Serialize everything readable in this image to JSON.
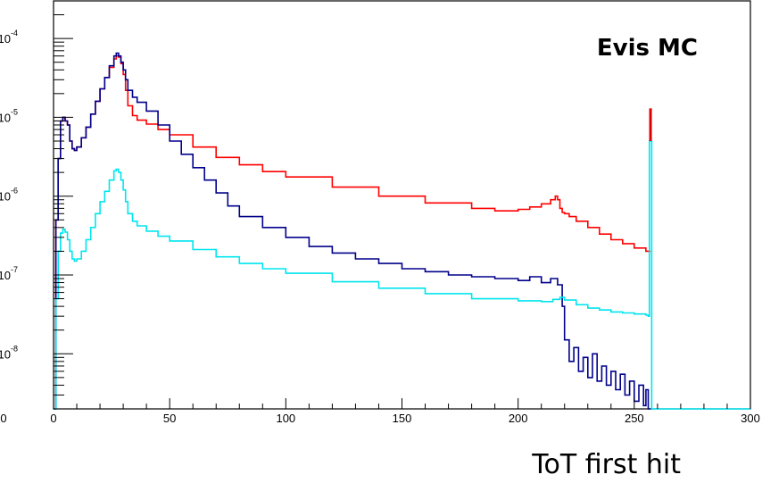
{
  "chart_data": {
    "type": "line",
    "title": "",
    "annotation": "Evis MC",
    "xlabel": "ToT first hit",
    "ylabel": "",
    "xlim": [
      0,
      300
    ],
    "ylog": true,
    "ylim": [
      2e-09,
      0.0003
    ],
    "x_ticks": [
      "0",
      "50",
      "100",
      "150",
      "200",
      "250",
      "300"
    ],
    "y_ticks": [
      {
        "value": 0.0001,
        "label": "10-4"
      },
      {
        "value": 1e-05,
        "label": "10-5"
      },
      {
        "value": 1e-06,
        "label": "10-6"
      },
      {
        "value": 1e-07,
        "label": "10-7"
      },
      {
        "value": 1e-08,
        "label": "10-8"
      }
    ],
    "grid": false,
    "legend": "none",
    "series": [
      {
        "color": "#ff0000",
        "x": [
          0,
          1,
          2,
          3,
          4,
          5,
          6,
          7,
          8,
          9,
          10,
          12,
          14,
          16,
          18,
          20,
          22,
          24,
          26,
          27,
          28,
          29,
          30,
          31,
          32,
          34,
          36,
          40,
          45,
          50,
          60,
          70,
          80,
          90,
          100,
          120,
          140,
          160,
          180,
          190,
          200,
          205,
          210,
          214,
          216,
          217,
          218,
          219,
          220,
          222,
          225,
          230,
          235,
          240,
          245,
          250,
          255,
          257
        ],
        "y": [
          2e-09,
          5e-07,
          3e-06,
          9e-06,
          1e-05,
          9e-06,
          8e-06,
          5e-06,
          4e-06,
          3.8e-06,
          4.2e-06,
          5.5e-06,
          7.5e-06,
          1.1e-05,
          1.6e-05,
          2.3e-05,
          3.2e-05,
          4.3e-05,
          5.5e-05,
          6e-05,
          5.8e-05,
          4.8e-05,
          3.5e-05,
          2.2e-05,
          1.4e-05,
          1.05e-05,
          9.2e-06,
          8.2e-06,
          7e-06,
          6e-06,
          4.2e-06,
          3.1e-06,
          2.5e-06,
          2.05e-06,
          1.75e-06,
          1.3e-06,
          1e-06,
          8.2e-07,
          7e-07,
          6.5e-07,
          6.8e-07,
          7.3e-07,
          8e-07,
          9e-07,
          1e-06,
          9e-07,
          7e-07,
          6.2e-07,
          6e-07,
          5.5e-07,
          4.8e-07,
          4e-07,
          3.3e-07,
          2.8e-07,
          2.5e-07,
          2.2e-07,
          2e-07,
          2e-07
        ]
      },
      {
        "color": "#00008b",
        "x": [
          0,
          1,
          2,
          3,
          4,
          5,
          6,
          7,
          8,
          9,
          10,
          12,
          14,
          16,
          18,
          20,
          22,
          24,
          26,
          27,
          28,
          29,
          30,
          31,
          32,
          34,
          36,
          40,
          45,
          50,
          55,
          60,
          65,
          70,
          75,
          80,
          90,
          100,
          110,
          120,
          130,
          140,
          150,
          160,
          170,
          180,
          190,
          200,
          205,
          210,
          214,
          217,
          219,
          220,
          222,
          224,
          226,
          228,
          230,
          232,
          234,
          236,
          238,
          240,
          242,
          244,
          246,
          248,
          250,
          252,
          254,
          255,
          256,
          257
        ],
        "y": [
          2e-09,
          5e-07,
          3e-06,
          9e-06,
          1e-05,
          9e-06,
          8e-06,
          5e-06,
          4e-06,
          3.8e-06,
          4.2e-06,
          5.5e-06,
          7.5e-06,
          1.1e-05,
          1.6e-05,
          2.3e-05,
          3.2e-05,
          4.5e-05,
          6e-05,
          6.5e-05,
          6e-05,
          5e-05,
          4e-05,
          3e-05,
          2.2e-05,
          1.8e-05,
          1.55e-05,
          1.2e-05,
          8e-06,
          5e-06,
          3.4e-06,
          2.3e-06,
          1.6e-06,
          1.1e-06,
          7.5e-07,
          5.5e-07,
          4e-07,
          3e-07,
          2.3e-07,
          1.9e-07,
          1.6e-07,
          1.4e-07,
          1.2e-07,
          1.1e-07,
          1e-07,
          9.5e-08,
          9e-08,
          8.5e-08,
          9.5e-08,
          8e-08,
          9e-08,
          7.5e-08,
          4e-08,
          1.5e-08,
          8e-09,
          1.2e-08,
          6e-09,
          9e-09,
          5e-09,
          1e-08,
          4.5e-09,
          7e-09,
          4e-09,
          6e-09,
          3.5e-09,
          5.5e-09,
          3e-09,
          4.5e-09,
          2.5e-09,
          4e-09,
          2.2e-09,
          3.5e-09,
          2e-09,
          2e-09
        ]
      },
      {
        "color": "#00e5ee",
        "x": [
          0,
          1,
          2,
          3,
          4,
          5,
          6,
          7,
          8,
          9,
          10,
          12,
          14,
          16,
          18,
          20,
          22,
          24,
          26,
          27,
          28,
          29,
          30,
          31,
          32,
          34,
          36,
          40,
          45,
          50,
          60,
          70,
          80,
          90,
          100,
          120,
          140,
          160,
          180,
          200,
          210,
          215,
          218,
          220,
          225,
          230,
          235,
          240,
          245,
          250,
          255,
          256,
          256.5,
          257,
          257.5,
          300
        ],
        "y": [
          2e-09,
          5e-08,
          2e-07,
          3.4e-07,
          3.8e-07,
          3.5e-07,
          2.8e-07,
          2e-07,
          1.6e-07,
          1.5e-07,
          1.6e-07,
          2e-07,
          2.8e-07,
          4e-07,
          6e-07,
          8.5e-07,
          1.15e-06,
          1.6e-06,
          2.1e-06,
          2.2e-06,
          2e-06,
          1.6e-06,
          1.2e-06,
          8.5e-07,
          6e-07,
          4.8e-07,
          4.2e-07,
          3.6e-07,
          3.1e-07,
          2.7e-07,
          2.1e-07,
          1.7e-07,
          1.4e-07,
          1.2e-07,
          1.05e-07,
          8.2e-08,
          6.8e-08,
          5.8e-08,
          5e-08,
          4.7e-08,
          4.6e-08,
          4.9e-08,
          5.2e-08,
          4.8e-08,
          4.2e-08,
          3.8e-08,
          3.6e-08,
          3.4e-08,
          3.3e-08,
          3.2e-08,
          3.1e-08,
          3e-08,
          5e-06,
          5e-06,
          2e-09,
          2e-09
        ]
      }
    ],
    "spike": {
      "x": 257,
      "y": 1.3e-05,
      "color": "#dd0000"
    }
  }
}
